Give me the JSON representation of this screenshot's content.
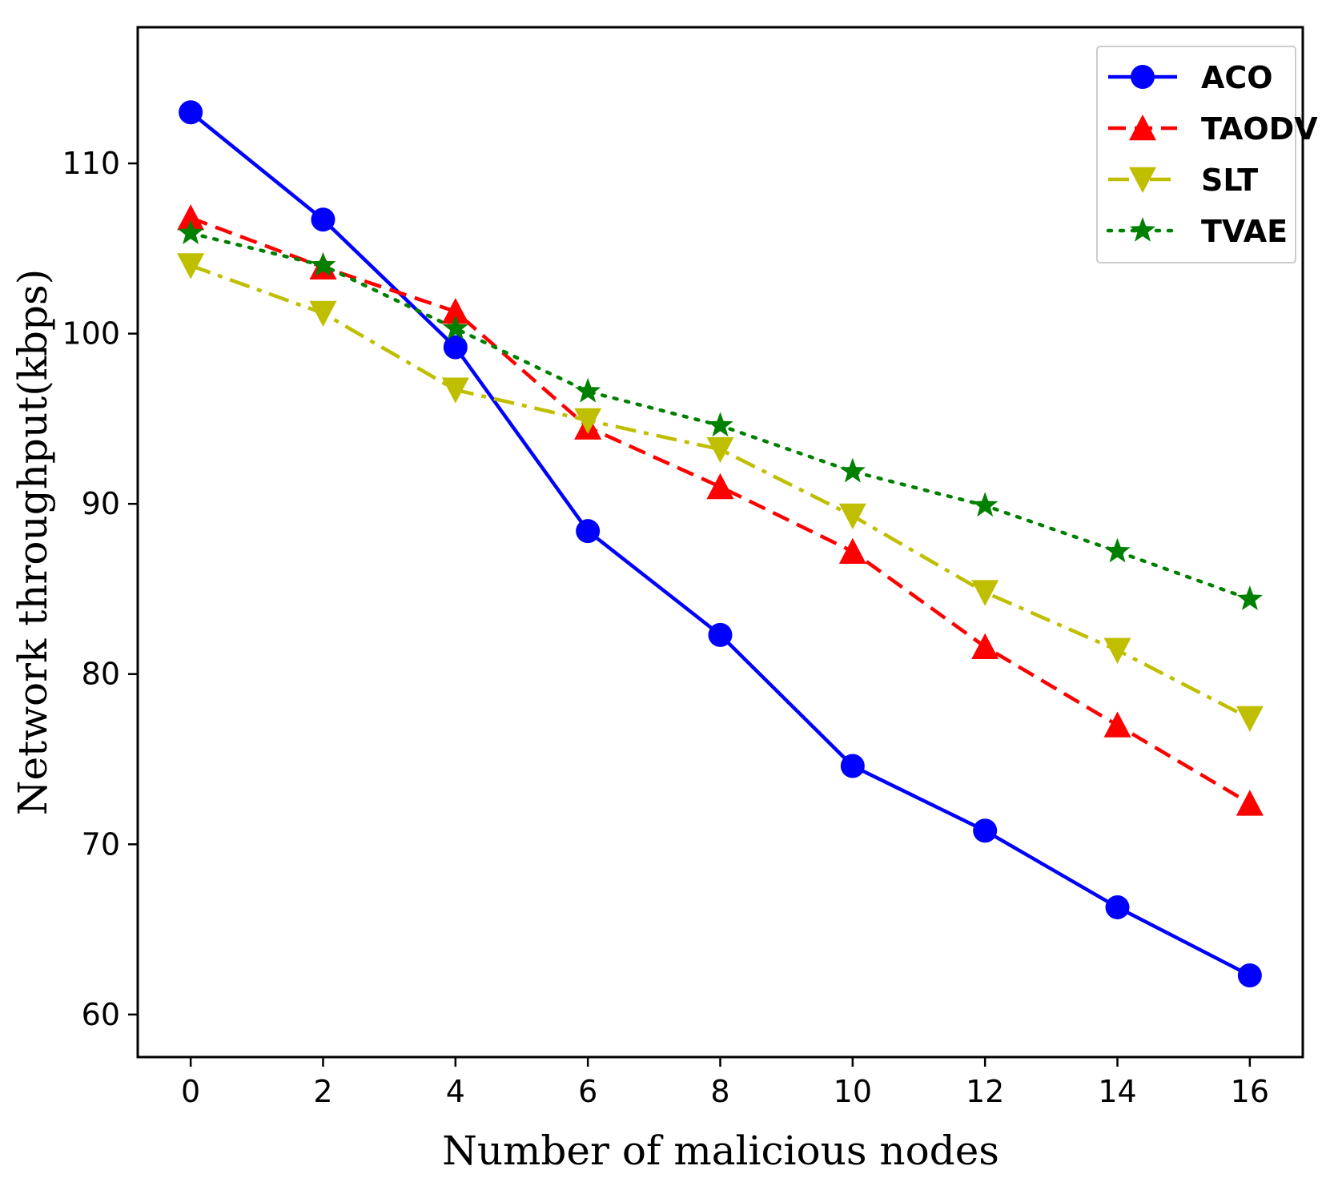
{
  "chart_data": {
    "type": "line",
    "title": "",
    "xlabel": "Number of malicious nodes",
    "ylabel": "Network throughput(kbps)",
    "x": [
      0,
      2,
      4,
      6,
      8,
      10,
      12,
      14,
      16
    ],
    "xticks": [
      "0",
      "2",
      "4",
      "6",
      "8",
      "10",
      "12",
      "14",
      "16"
    ],
    "yticks": [
      "60",
      "70",
      "80",
      "90",
      "100",
      "110"
    ],
    "xlim": [
      -0.8,
      16.8
    ],
    "ylim": [
      57.5,
      118
    ],
    "grid": false,
    "legend_position": "top-right",
    "series": [
      {
        "name": "ACO",
        "color": "#0000ff",
        "linestyle": "solid",
        "marker": "circle",
        "values": [
          113,
          106.7,
          99.2,
          88.4,
          82.3,
          74.6,
          70.8,
          66.3,
          62.3
        ]
      },
      {
        "name": "TAODV",
        "color": "#ff0000",
        "linestyle": "dashed",
        "marker": "triangle-up",
        "values": [
          106.8,
          103.9,
          101.3,
          94.5,
          91.0,
          87.2,
          81.6,
          77.0,
          72.4
        ]
      },
      {
        "name": "SLT",
        "color": "#bfbf00",
        "linestyle": "dashdot",
        "marker": "triangle-down",
        "values": [
          104.0,
          101.2,
          96.7,
          94.9,
          93.2,
          89.3,
          84.8,
          81.4,
          77.4
        ]
      },
      {
        "name": "TVAE",
        "color": "#008000",
        "linestyle": "dotted",
        "marker": "star",
        "values": [
          105.9,
          104.0,
          100.3,
          96.6,
          94.6,
          91.9,
          89.9,
          87.2,
          84.4
        ]
      }
    ]
  }
}
